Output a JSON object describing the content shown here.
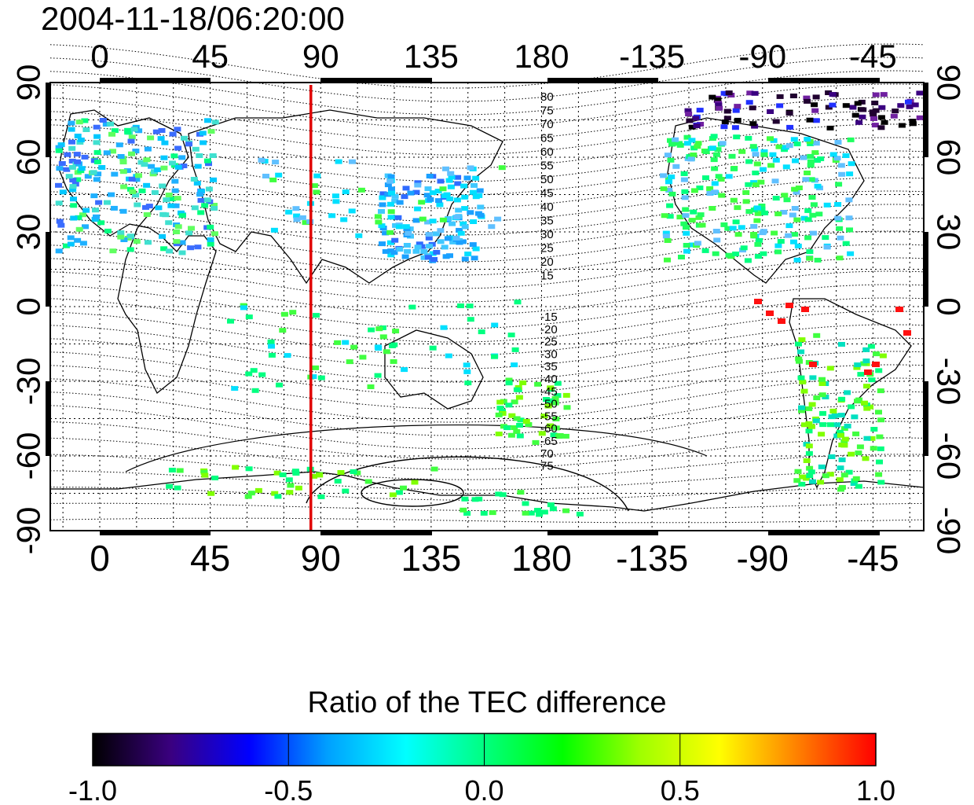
{
  "timestamp": "2004-11-18/06:20:00",
  "map": {
    "top_axis_labels": [
      "0",
      "45",
      "90",
      "135",
      "180",
      "-135",
      "-90",
      "-45"
    ],
    "bottom_axis_labels": [
      "0",
      "45",
      "90",
      "135",
      "180",
      "-135",
      "-90",
      "-45"
    ],
    "left_axis_labels": [
      "90",
      "60",
      "30",
      "0",
      "-30",
      "-60",
      "-90"
    ],
    "right_axis_labels": [
      "90",
      "60",
      "30",
      "0",
      "-30",
      "-60",
      "-90"
    ],
    "marker_line_longitude": 86,
    "marker_line_color": "#e00000",
    "contour_labels_north": [
      "80",
      "75",
      "70",
      "65",
      "60",
      "55",
      "50",
      "45",
      "40",
      "35",
      "30",
      "25",
      "20",
      "15"
    ],
    "contour_labels_south": [
      "-15",
      "-20",
      "-25",
      "-30",
      "-35",
      "-40",
      "-45",
      "-50",
      "-55",
      "-60",
      "-65",
      "70",
      "75"
    ]
  },
  "colorbar": {
    "title": "Ratio of the TEC difference",
    "tick_labels": [
      "-1.0",
      "-0.5",
      "0.0",
      "0.5",
      "1.0"
    ],
    "range": [
      -1.0,
      1.0
    ],
    "colors": [
      "#000000",
      "#3a0080",
      "#0000ff",
      "#00a0ff",
      "#00ffff",
      "#00ff80",
      "#00ff00",
      "#a0ff00",
      "#ffff00",
      "#ff8000",
      "#ff0000"
    ]
  }
}
